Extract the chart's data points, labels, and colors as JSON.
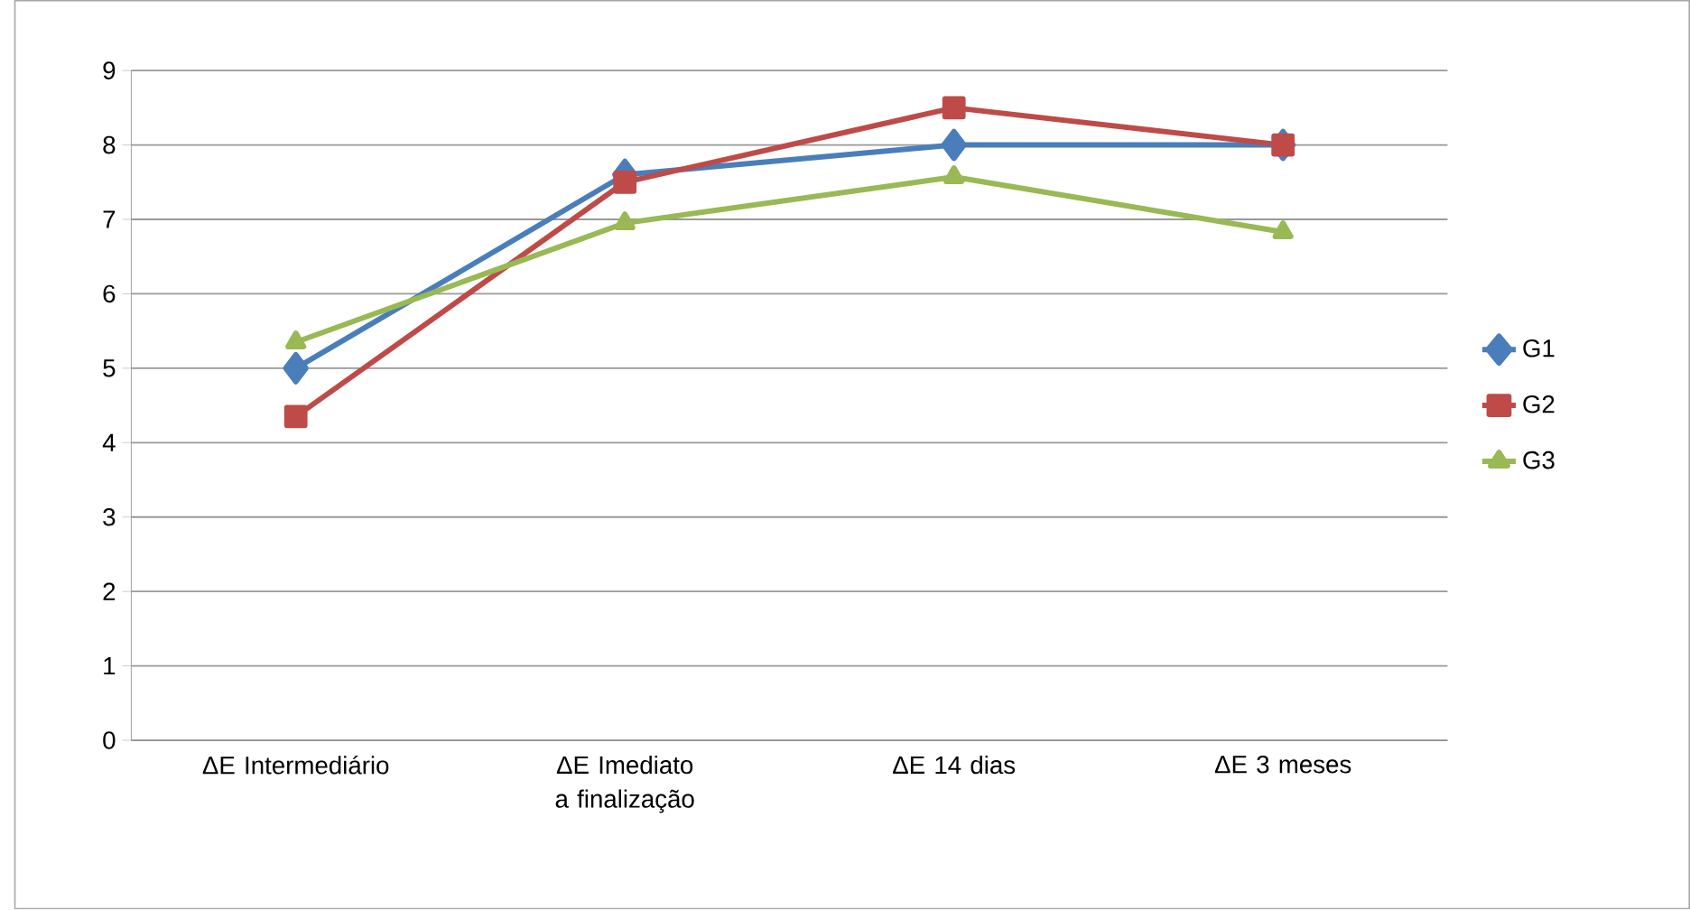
{
  "chart_data": {
    "type": "line",
    "categories": [
      "ΔE Intermediário",
      "ΔE Imediato a finalização",
      "ΔE 14 dias",
      "ΔE 3 meses"
    ],
    "series": [
      {
        "name": "G1",
        "color": "#4a7ebb",
        "marker": "diamond",
        "values": [
          5.0,
          7.6,
          8.0,
          8.0
        ]
      },
      {
        "name": "G2",
        "color": "#be4b48",
        "marker": "square",
        "values": [
          4.35,
          7.5,
          8.5,
          8.0
        ]
      },
      {
        "name": "G3",
        "color": "#98b954",
        "marker": "triangle",
        "values": [
          5.35,
          6.95,
          7.57,
          6.83
        ]
      }
    ],
    "ylim": [
      0,
      9
    ],
    "yticks": [
      0,
      1,
      2,
      3,
      4,
      5,
      6,
      7,
      8,
      9
    ],
    "grid": "y",
    "legend": "right",
    "line_style": "solid"
  }
}
